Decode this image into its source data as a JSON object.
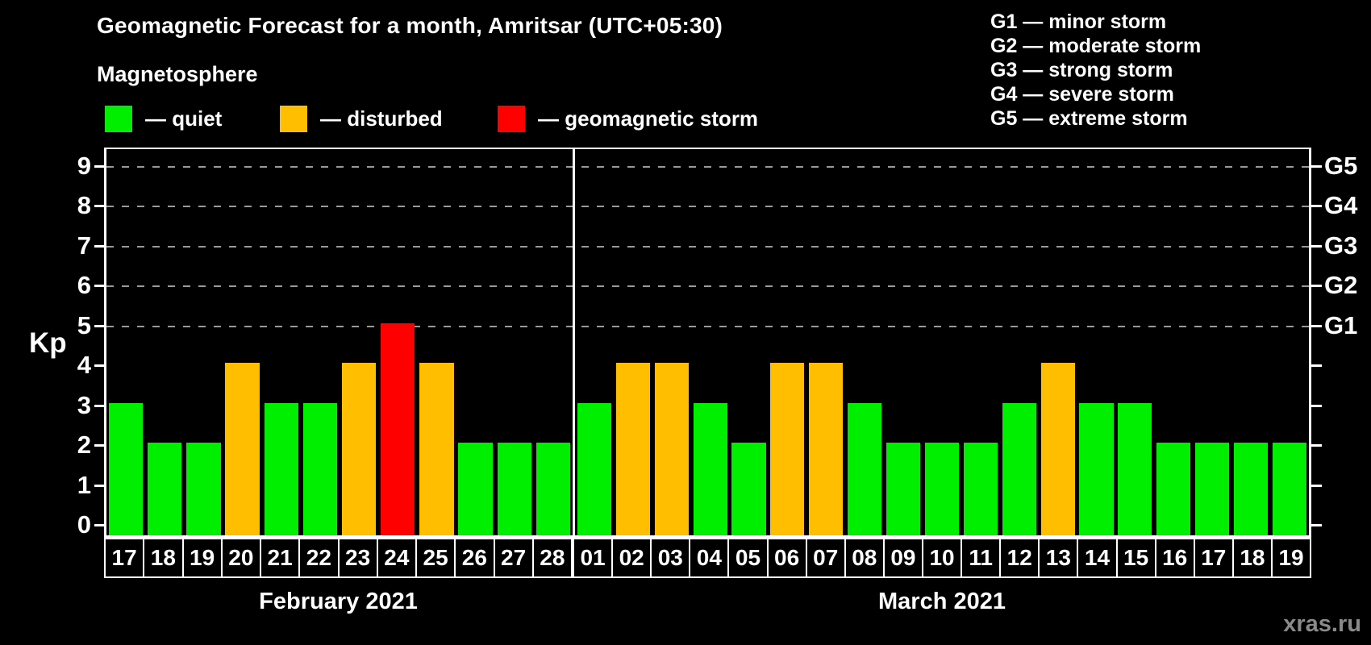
{
  "title": "Geomagnetic Forecast for a month, Amritsar (UTC+05:30)",
  "subtitle": "Magnetosphere",
  "legend": {
    "items": [
      {
        "state": "quiet",
        "label": "— quiet",
        "color": "#00ee00"
      },
      {
        "state": "disturbed",
        "label": "— disturbed",
        "color": "#ffbf00"
      },
      {
        "state": "storm",
        "label": "— geomagnetic storm",
        "color": "#ff0000"
      }
    ]
  },
  "g_legend": [
    "G1 — minor storm",
    "G2 — moderate storm",
    "G3 — strong storm",
    "G4 — severe storm",
    "G5 — extreme storm"
  ],
  "watermark": "xras.ru",
  "chart_data": {
    "type": "bar",
    "title": "Geomagnetic Forecast for a month, Amritsar (UTC+05:30)",
    "xlabel": "",
    "ylabel": "Kp",
    "ylim": [
      0,
      9.7
    ],
    "grid": "dashed horizontal at Kp 5-9",
    "y_ticks": [
      "0",
      "1",
      "2",
      "3",
      "4",
      "5",
      "6",
      "7",
      "8",
      "9"
    ],
    "gridline_levels": [
      5,
      6,
      7,
      8,
      9
    ],
    "right_axis_labels": [
      {
        "label": "G5",
        "kp": 9
      },
      {
        "label": "G4",
        "kp": 8
      },
      {
        "label": "G3",
        "kp": 7
      },
      {
        "label": "G2",
        "kp": 6
      },
      {
        "label": "G1",
        "kp": 5
      }
    ],
    "color_map": {
      "quiet": "#00ee00",
      "disturbed": "#ffbf00",
      "storm": "#ff0000"
    },
    "groups": [
      {
        "month": "February 2021",
        "days": [
          "17",
          "18",
          "19",
          "20",
          "21",
          "22",
          "23",
          "24",
          "25",
          "26",
          "27",
          "28"
        ],
        "values": [
          3,
          2,
          2,
          4,
          3,
          3,
          4,
          5,
          4,
          2,
          2,
          2
        ],
        "states": [
          "quiet",
          "quiet",
          "quiet",
          "disturbed",
          "quiet",
          "quiet",
          "disturbed",
          "storm",
          "disturbed",
          "quiet",
          "quiet",
          "quiet"
        ]
      },
      {
        "month": "March 2021",
        "days": [
          "01",
          "02",
          "03",
          "04",
          "05",
          "06",
          "07",
          "08",
          "09",
          "10",
          "11",
          "12",
          "13",
          "14",
          "15",
          "16",
          "17",
          "18",
          "19"
        ],
        "values": [
          3,
          4,
          4,
          3,
          2,
          4,
          4,
          3,
          2,
          2,
          2,
          3,
          4,
          3,
          3,
          2,
          2,
          2,
          2
        ],
        "states": [
          "quiet",
          "disturbed",
          "disturbed",
          "quiet",
          "quiet",
          "disturbed",
          "disturbed",
          "quiet",
          "quiet",
          "quiet",
          "quiet",
          "quiet",
          "disturbed",
          "quiet",
          "quiet",
          "quiet",
          "quiet",
          "quiet",
          "quiet"
        ]
      }
    ]
  }
}
